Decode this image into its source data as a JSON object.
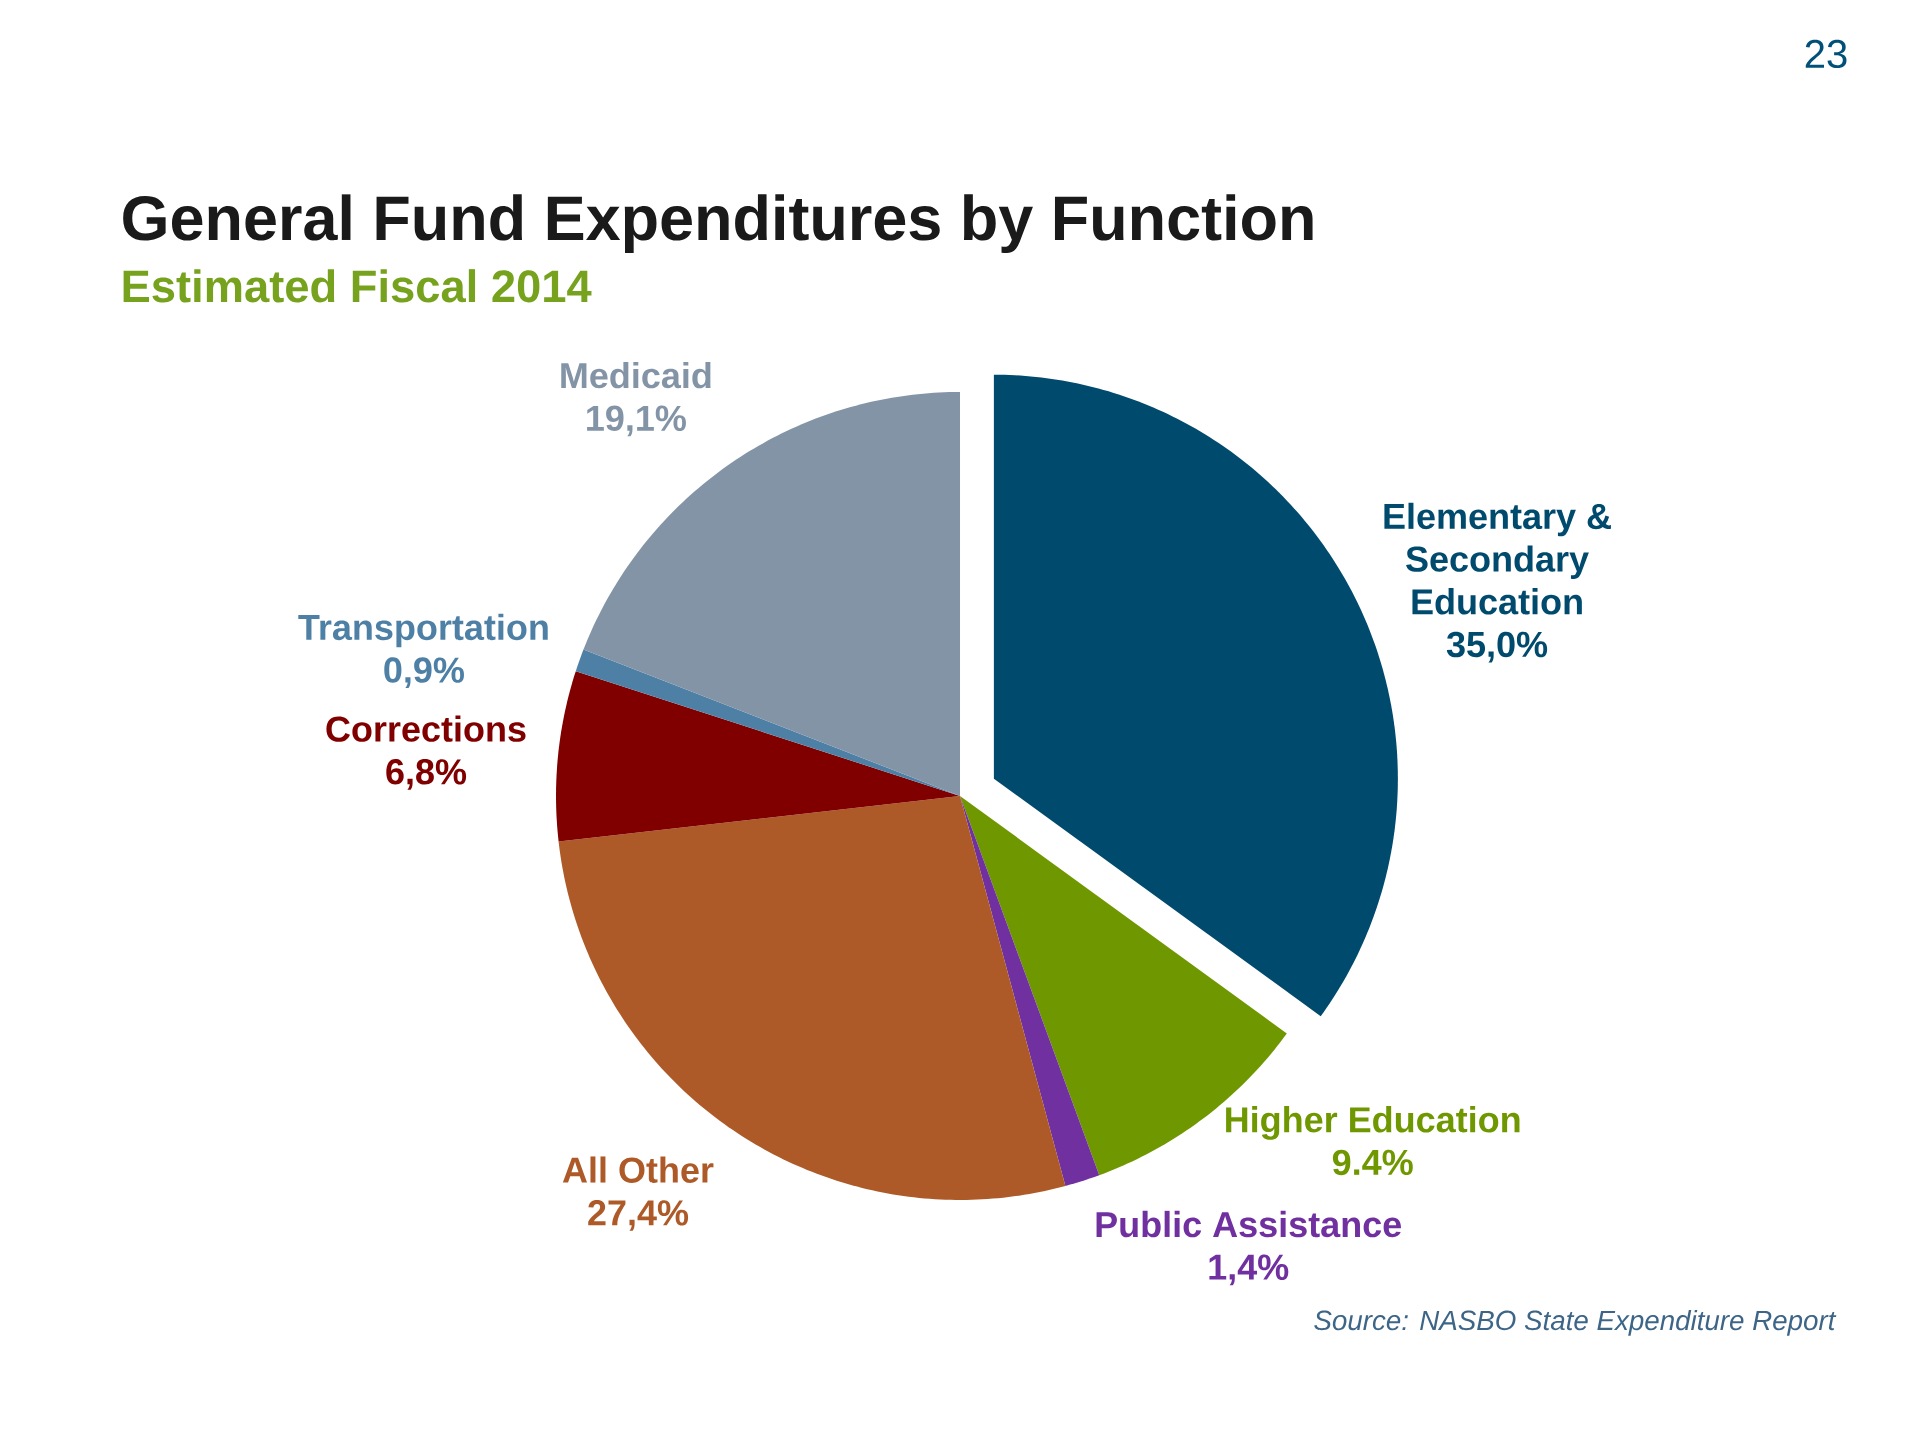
{
  "chart_data": {
    "type": "pie",
    "title": "General Fund Expenditures by Function",
    "subtitle": "Estimated Fiscal 2014",
    "categories": [
      "Elementary & Secondary Education",
      "Higher Education",
      "Public Assistance",
      "All Other",
      "Corrections",
      "Transportation",
      "Medicaid"
    ],
    "values": [
      35.0,
      9.4,
      1.4,
      27.4,
      6.8,
      0.9,
      19.1
    ],
    "value_labels": [
      "35,0%",
      "9.4%",
      "1,4%",
      "27,4%",
      "6,8%",
      "0,9%",
      "19,1%"
    ],
    "colors": [
      "#004a6e",
      "#6f9800",
      "#7030a0",
      "#ad5a28",
      "#800000",
      "#4e80a6",
      "#8394a6"
    ],
    "annotations": [
      "Source: NASBO State Expenditure Report",
      "23"
    ]
  }
}
